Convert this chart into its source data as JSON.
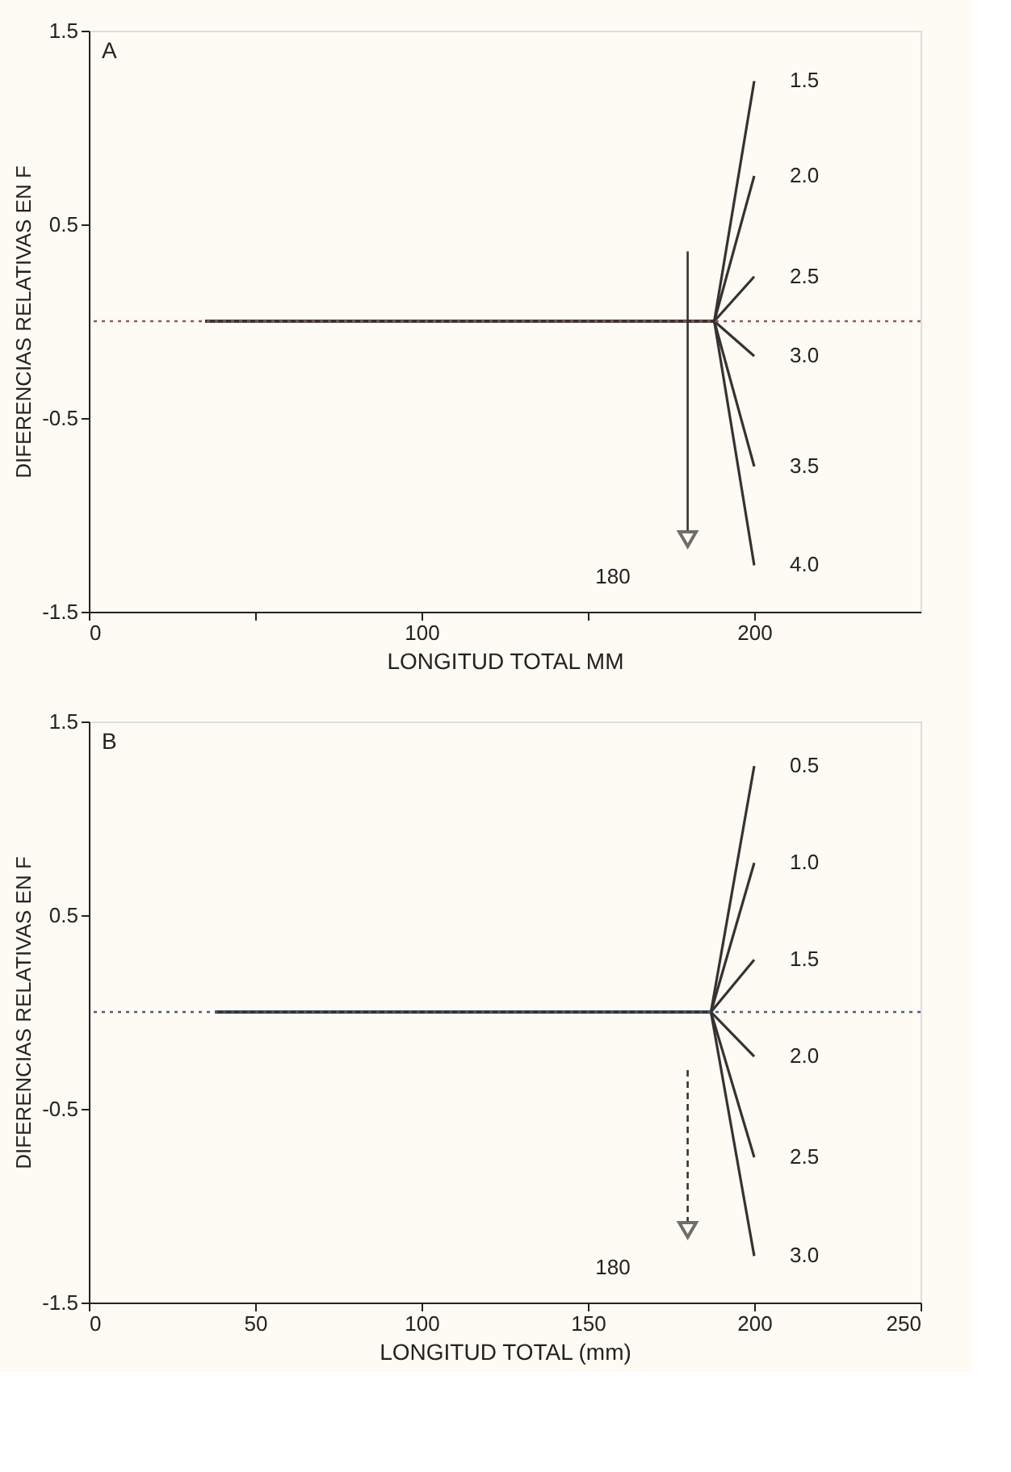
{
  "chart_data": [
    {
      "type": "line",
      "title": "A",
      "xlabel": "LONGITUD TOTAL MM",
      "ylabel": "DIFERENCIAS RELATIVAS EN F",
      "xlim": [
        0,
        250
      ],
      "xticks": [
        0,
        {
          "value": 50,
          "label": null
        },
        100,
        {
          "value": 150,
          "label": null
        },
        200
      ],
      "ylim": [
        -1.5,
        1.5
      ],
      "yticks": [
        -1.5,
        -0.5,
        0.5,
        1.5
      ],
      "grid": false,
      "legend": false,
      "marker": "none",
      "line_style": "solid",
      "ref_lines": [
        {
          "axis": "y",
          "value": 0,
          "label": null,
          "color": "#8a5a5a",
          "line_style": "dotted"
        }
      ],
      "annotations": [
        "180"
      ],
      "series": [
        {
          "name": "1.5",
          "color": "#333333",
          "x": [
            35,
            188,
            200
          ],
          "values": [
            0,
            0,
            1.24
          ]
        },
        {
          "name": "2.0",
          "color": "#333333",
          "x": [
            35,
            188,
            200
          ],
          "values": [
            0,
            0,
            0.75
          ]
        },
        {
          "name": "2.5",
          "color": "#333333",
          "x": [
            35,
            188,
            200
          ],
          "values": [
            0,
            0,
            0.23
          ]
        },
        {
          "name": "3.0",
          "color": "#333333",
          "x": [
            35,
            188,
            200
          ],
          "values": [
            0,
            0,
            -0.18
          ]
        },
        {
          "name": "3.5",
          "color": "#333333",
          "x": [
            35,
            188,
            200
          ],
          "values": [
            0,
            0,
            -0.75
          ]
        },
        {
          "name": "4.0",
          "color": "#333333",
          "x": [
            35,
            188,
            200
          ],
          "values": [
            0,
            0,
            -1.26
          ]
        }
      ]
    },
    {
      "type": "line",
      "title": "B",
      "xlabel": "LONGITUD TOTAL (mm)",
      "ylabel": "DIFERENCIAS RELATIVAS EN F",
      "xlim": [
        0,
        250
      ],
      "xticks": [
        0,
        50,
        100,
        150,
        200,
        250
      ],
      "ylim": [
        -1.5,
        1.5
      ],
      "yticks": [
        -1.5,
        -0.5,
        0.5,
        1.5
      ],
      "grid": false,
      "legend": false,
      "marker": "none",
      "line_style": "solid",
      "ref_lines": [
        {
          "axis": "y",
          "value": 0,
          "label": null,
          "color": "#4a5a8a",
          "line_style": "dotted"
        }
      ],
      "annotations": [
        "180"
      ],
      "series": [
        {
          "name": "0.5",
          "color": "#333333",
          "x": [
            38,
            187,
            200
          ],
          "values": [
            0,
            0,
            1.27
          ]
        },
        {
          "name": "1.0",
          "color": "#333333",
          "x": [
            38,
            187,
            200
          ],
          "values": [
            0,
            0,
            0.77
          ]
        },
        {
          "name": "1.5",
          "color": "#333333",
          "x": [
            38,
            187,
            200
          ],
          "values": [
            0,
            0,
            0.27
          ]
        },
        {
          "name": "2.0",
          "color": "#333333",
          "x": [
            38,
            187,
            200
          ],
          "values": [
            0,
            0,
            -0.23
          ]
        },
        {
          "name": "2.5",
          "color": "#333333",
          "x": [
            38,
            187,
            200
          ],
          "values": [
            0,
            0,
            -0.75
          ]
        },
        {
          "name": "3.0",
          "color": "#333333",
          "x": [
            38,
            187,
            200
          ],
          "values": [
            0,
            0,
            -1.26
          ]
        }
      ]
    }
  ]
}
